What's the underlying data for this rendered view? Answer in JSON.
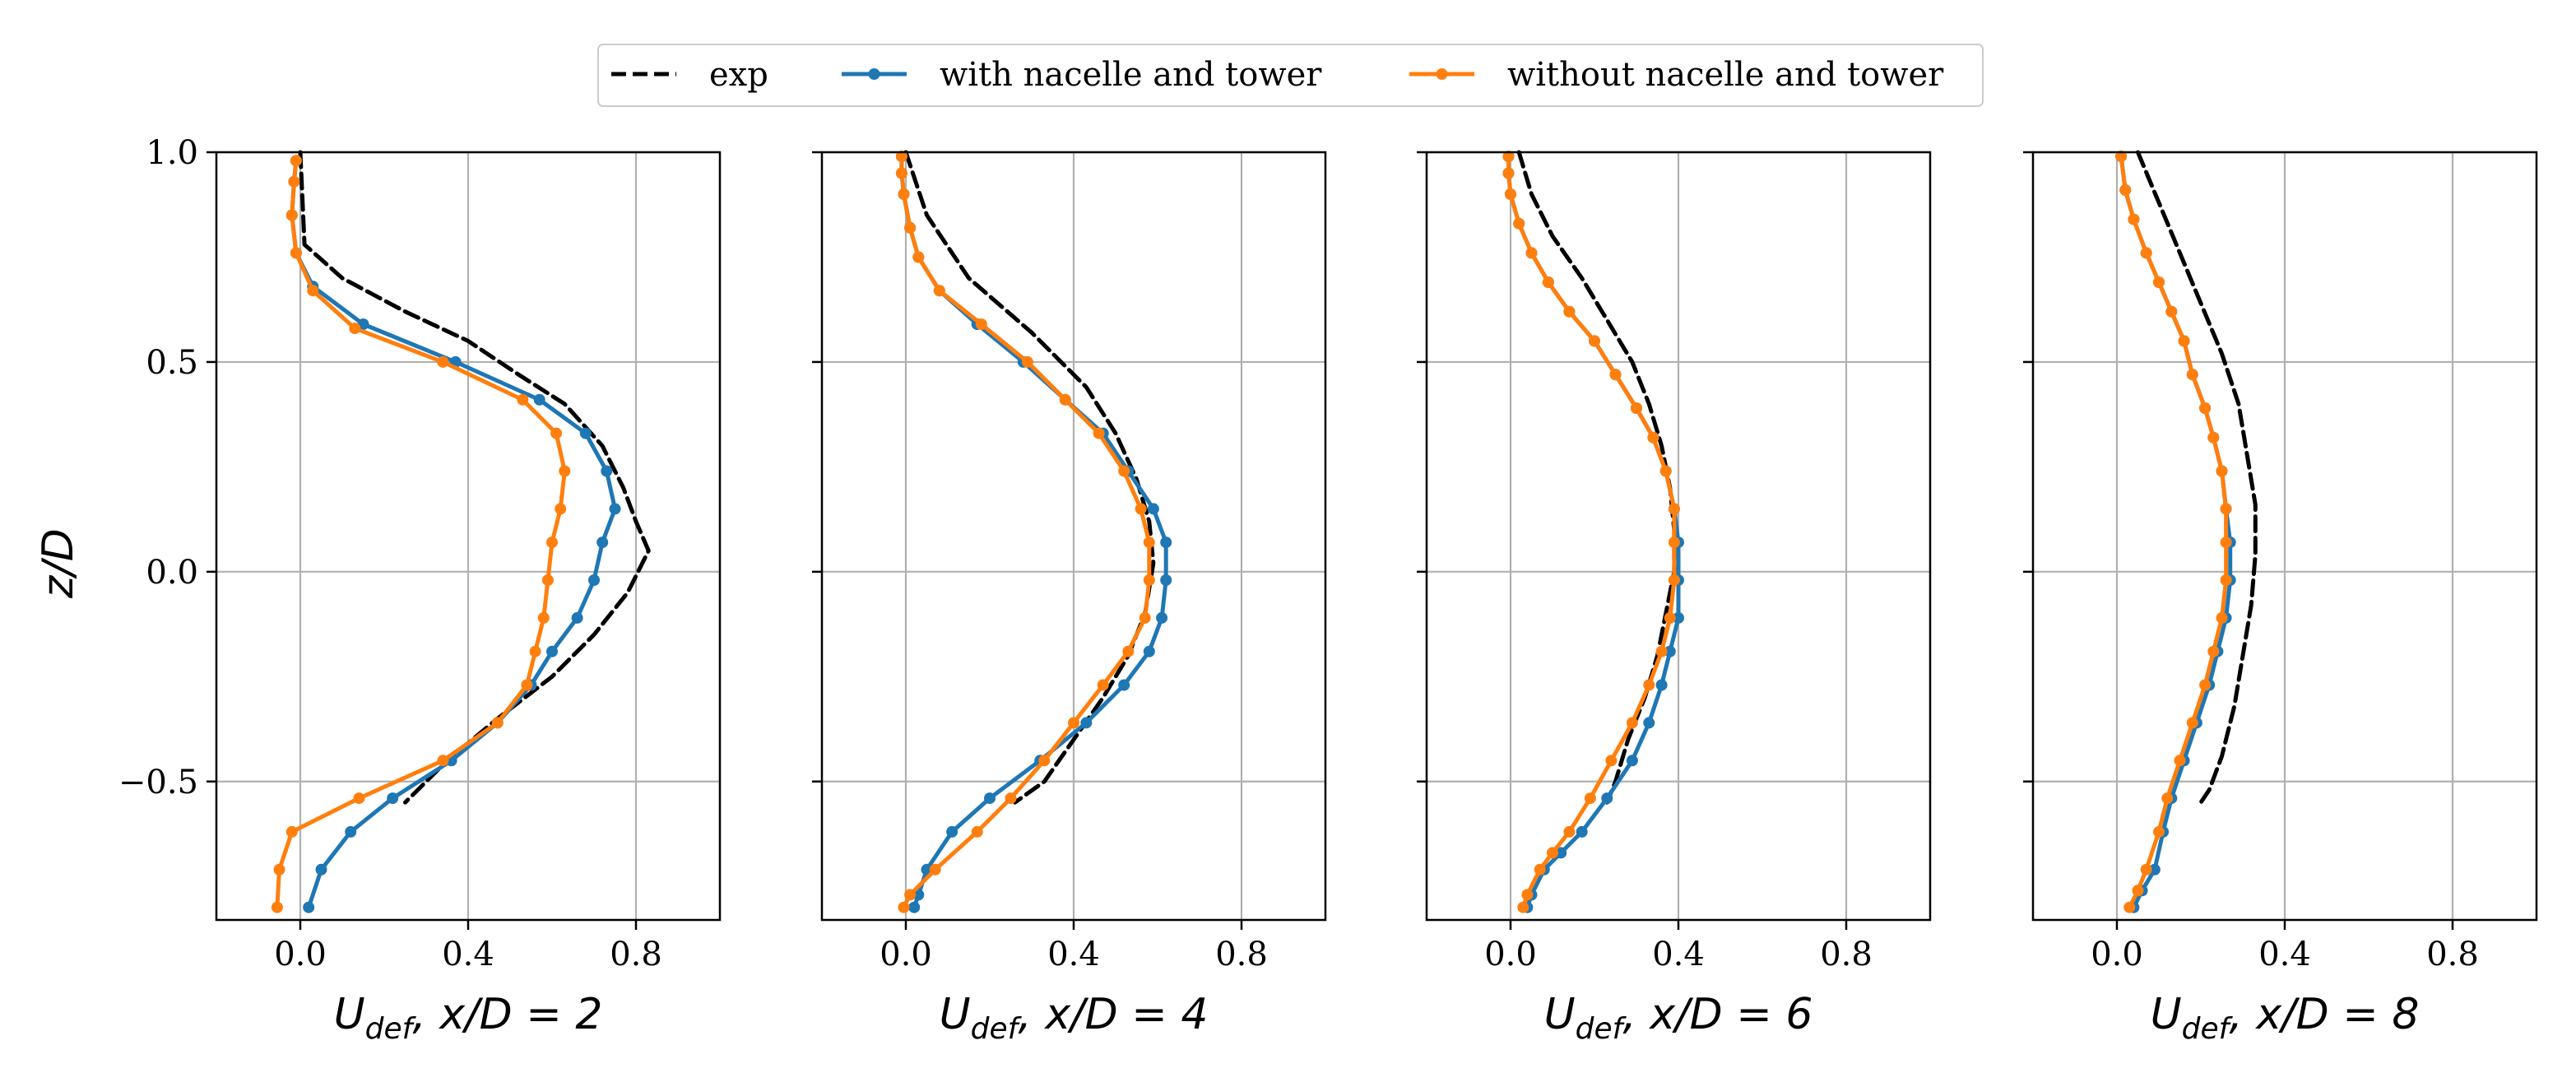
{
  "chart_data": {
    "type": "line",
    "ylabel": "z/D",
    "ylim": [
      -0.83,
      1.0
    ],
    "xlim": [
      -0.2,
      1.0
    ],
    "xticks": [
      {
        "value": 0.0,
        "label": "0.0"
      },
      {
        "value": 0.4,
        "label": "0.4"
      },
      {
        "value": 0.8,
        "label": "0.8"
      }
    ],
    "yticks": [
      {
        "value": 1.0,
        "label": "1.0"
      },
      {
        "value": 0.5,
        "label": "0.5"
      },
      {
        "value": 0.0,
        "label": "0.0"
      },
      {
        "value": -0.5,
        "label": "−0.5"
      }
    ],
    "grid": true,
    "legend": {
      "location": "top-center",
      "entries": [
        {
          "label": "exp",
          "color": "#000000",
          "style": "dashed",
          "marker": "none"
        },
        {
          "label": "with nacelle and tower",
          "color": "#1f77b4",
          "style": "solid",
          "marker": "circle"
        },
        {
          "label": "without nacelle and tower",
          "color": "#ff7f0e",
          "style": "solid",
          "marker": "circle"
        }
      ]
    },
    "panels": [
      {
        "xlabel": "U_def, x/D = 2",
        "series": [
          {
            "name": "exp",
            "x": [
              0.0,
              0.01,
              0.1,
              0.25,
              0.4,
              0.52,
              0.63,
              0.72,
              0.77,
              0.8,
              0.83,
              0.78,
              0.7,
              0.6,
              0.47,
              0.35,
              0.25
            ],
            "y": [
              1.0,
              0.78,
              0.7,
              0.62,
              0.55,
              0.47,
              0.4,
              0.3,
              0.2,
              0.12,
              0.05,
              -0.05,
              -0.15,
              -0.25,
              -0.35,
              -0.45,
              -0.55
            ]
          },
          {
            "name": "with nacelle and tower",
            "x": [
              -0.01,
              -0.015,
              -0.02,
              -0.01,
              0.03,
              0.15,
              0.37,
              0.57,
              0.68,
              0.73,
              0.75,
              0.72,
              0.7,
              0.66,
              0.6,
              0.55,
              0.47,
              0.36,
              0.22,
              0.12,
              0.05,
              0.02
            ],
            "y": [
              0.98,
              0.93,
              0.85,
              0.76,
              0.68,
              0.59,
              0.5,
              0.41,
              0.33,
              0.24,
              0.15,
              0.07,
              -0.02,
              -0.11,
              -0.19,
              -0.27,
              -0.36,
              -0.45,
              -0.54,
              -0.62,
              -0.71,
              -0.8
            ]
          },
          {
            "name": "without nacelle and tower",
            "x": [
              -0.01,
              -0.015,
              -0.02,
              -0.01,
              0.03,
              0.13,
              0.34,
              0.53,
              0.61,
              0.63,
              0.62,
              0.6,
              0.59,
              0.58,
              0.56,
              0.54,
              0.47,
              0.34,
              0.14,
              -0.02,
              -0.05,
              -0.055
            ],
            "y": [
              0.98,
              0.93,
              0.85,
              0.76,
              0.67,
              0.58,
              0.5,
              0.41,
              0.33,
              0.24,
              0.15,
              0.07,
              -0.02,
              -0.11,
              -0.19,
              -0.27,
              -0.36,
              -0.45,
              -0.54,
              -0.62,
              -0.71,
              -0.8
            ]
          }
        ]
      },
      {
        "xlabel": "U_def, x/D = 4",
        "series": [
          {
            "name": "exp",
            "x": [
              0.0,
              0.05,
              0.15,
              0.3,
              0.43,
              0.5,
              0.55,
              0.58,
              0.59,
              0.57,
              0.53,
              0.47,
              0.4,
              0.33,
              0.26
            ],
            "y": [
              1.0,
              0.85,
              0.7,
              0.57,
              0.44,
              0.33,
              0.22,
              0.12,
              0.02,
              -0.1,
              -0.2,
              -0.3,
              -0.4,
              -0.5,
              -0.55
            ]
          },
          {
            "name": "with nacelle and tower",
            "x": [
              -0.01,
              -0.01,
              -0.005,
              0.01,
              0.03,
              0.08,
              0.17,
              0.28,
              0.38,
              0.47,
              0.53,
              0.59,
              0.62,
              0.62,
              0.61,
              0.58,
              0.52,
              0.43,
              0.32,
              0.2,
              0.11,
              0.05,
              0.03,
              0.02
            ],
            "y": [
              0.99,
              0.95,
              0.9,
              0.82,
              0.75,
              0.67,
              0.59,
              0.5,
              0.41,
              0.33,
              0.24,
              0.15,
              0.07,
              -0.02,
              -0.11,
              -0.19,
              -0.27,
              -0.36,
              -0.45,
              -0.54,
              -0.62,
              -0.71,
              -0.77,
              -0.8
            ]
          },
          {
            "name": "without nacelle and tower",
            "x": [
              -0.01,
              -0.01,
              -0.005,
              0.01,
              0.03,
              0.08,
              0.18,
              0.29,
              0.38,
              0.46,
              0.52,
              0.56,
              0.58,
              0.58,
              0.57,
              0.53,
              0.47,
              0.4,
              0.33,
              0.25,
              0.17,
              0.07,
              0.01,
              -0.005
            ],
            "y": [
              0.99,
              0.95,
              0.9,
              0.82,
              0.75,
              0.67,
              0.59,
              0.5,
              0.41,
              0.33,
              0.24,
              0.15,
              0.07,
              -0.02,
              -0.11,
              -0.19,
              -0.27,
              -0.36,
              -0.45,
              -0.54,
              -0.62,
              -0.71,
              -0.77,
              -0.8
            ]
          }
        ]
      },
      {
        "xlabel": "U_def, x/D = 6",
        "series": [
          {
            "name": "exp",
            "x": [
              0.02,
              0.05,
              0.1,
              0.17,
              0.23,
              0.29,
              0.33,
              0.36,
              0.38,
              0.39,
              0.39,
              0.37,
              0.35,
              0.32,
              0.28,
              0.25,
              0.23
            ],
            "y": [
              1.0,
              0.9,
              0.8,
              0.7,
              0.6,
              0.5,
              0.4,
              0.3,
              0.2,
              0.1,
              0.0,
              -0.1,
              -0.2,
              -0.3,
              -0.4,
              -0.5,
              -0.55
            ]
          },
          {
            "name": "with nacelle and tower",
            "x": [
              -0.005,
              -0.005,
              0.0,
              0.02,
              0.05,
              0.09,
              0.14,
              0.2,
              0.25,
              0.3,
              0.34,
              0.37,
              0.39,
              0.4,
              0.4,
              0.4,
              0.38,
              0.36,
              0.33,
              0.29,
              0.23,
              0.17,
              0.12,
              0.08,
              0.05,
              0.04
            ],
            "y": [
              0.99,
              0.95,
              0.9,
              0.83,
              0.76,
              0.69,
              0.62,
              0.55,
              0.47,
              0.39,
              0.32,
              0.24,
              0.15,
              0.07,
              -0.02,
              -0.11,
              -0.19,
              -0.27,
              -0.36,
              -0.45,
              -0.54,
              -0.62,
              -0.67,
              -0.71,
              -0.77,
              -0.8
            ]
          },
          {
            "name": "without nacelle and tower",
            "x": [
              -0.005,
              -0.005,
              0.0,
              0.02,
              0.05,
              0.09,
              0.14,
              0.2,
              0.25,
              0.3,
              0.34,
              0.37,
              0.39,
              0.39,
              0.39,
              0.38,
              0.36,
              0.33,
              0.29,
              0.24,
              0.19,
              0.14,
              0.1,
              0.07,
              0.04,
              0.03
            ],
            "y": [
              0.99,
              0.95,
              0.9,
              0.83,
              0.76,
              0.69,
              0.62,
              0.55,
              0.47,
              0.39,
              0.32,
              0.24,
              0.15,
              0.07,
              -0.02,
              -0.11,
              -0.19,
              -0.27,
              -0.36,
              -0.45,
              -0.54,
              -0.62,
              -0.67,
              -0.71,
              -0.77,
              -0.8
            ]
          }
        ]
      },
      {
        "xlabel": "U_def, x/D = 8",
        "series": [
          {
            "name": "exp",
            "x": [
              0.05,
              0.1,
              0.15,
              0.2,
              0.25,
              0.29,
              0.31,
              0.33,
              0.33,
              0.32,
              0.3,
              0.28,
              0.25,
              0.22,
              0.2
            ],
            "y": [
              1.0,
              0.88,
              0.76,
              0.64,
              0.52,
              0.4,
              0.28,
              0.16,
              0.04,
              -0.08,
              -0.2,
              -0.32,
              -0.44,
              -0.52,
              -0.55
            ]
          },
          {
            "name": "with nacelle and tower",
            "x": [
              0.01,
              0.02,
              0.04,
              0.07,
              0.1,
              0.13,
              0.16,
              0.18,
              0.21,
              0.23,
              0.25,
              0.26,
              0.27,
              0.27,
              0.26,
              0.24,
              0.22,
              0.19,
              0.16,
              0.13,
              0.11,
              0.09,
              0.06,
              0.04
            ],
            "y": [
              0.99,
              0.91,
              0.84,
              0.76,
              0.69,
              0.62,
              0.55,
              0.47,
              0.39,
              0.32,
              0.24,
              0.15,
              0.07,
              -0.02,
              -0.11,
              -0.19,
              -0.27,
              -0.36,
              -0.45,
              -0.54,
              -0.62,
              -0.71,
              -0.76,
              -0.8
            ]
          },
          {
            "name": "without nacelle and tower",
            "x": [
              0.01,
              0.02,
              0.04,
              0.07,
              0.1,
              0.13,
              0.16,
              0.18,
              0.21,
              0.23,
              0.25,
              0.26,
              0.26,
              0.26,
              0.25,
              0.23,
              0.21,
              0.18,
              0.15,
              0.12,
              0.1,
              0.07,
              0.05,
              0.03
            ],
            "y": [
              0.99,
              0.91,
              0.84,
              0.76,
              0.69,
              0.62,
              0.55,
              0.47,
              0.39,
              0.32,
              0.24,
              0.15,
              0.07,
              -0.02,
              -0.11,
              -0.19,
              -0.27,
              -0.36,
              -0.45,
              -0.54,
              -0.62,
              -0.71,
              -0.76,
              -0.8
            ]
          }
        ]
      }
    ]
  }
}
